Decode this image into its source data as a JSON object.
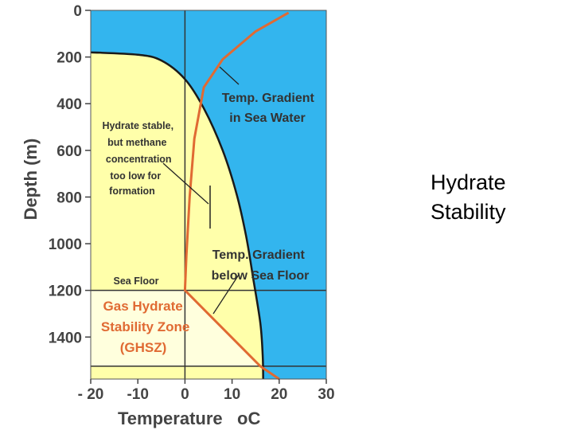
{
  "slide_title": {
    "line1": "Hydrate",
    "line2": "Stability"
  },
  "colors": {
    "sea_water": "#33b5ee",
    "stability_field": "#ffffaa",
    "ghsz": "#ffffdd",
    "temperature_curve": "#e06a33",
    "phase_boundary": "#1a1a1a",
    "axis_text": "#444444"
  },
  "chart_data": {
    "type": "line",
    "title": "",
    "xlabel": "Temperature",
    "xlabel_unit": "oC",
    "ylabel": "Depth (m)",
    "xlim": [
      -20,
      30
    ],
    "ylim": [
      0,
      1580
    ],
    "y_inverted": true,
    "x_ticks": [
      "- 20",
      "-10",
      "0",
      "10",
      "20",
      "30"
    ],
    "x_tick_values": [
      -20,
      -10,
      0,
      10,
      20,
      30
    ],
    "y_ticks": [
      "0",
      "200",
      "400",
      "600",
      "800",
      "1000",
      "1200",
      "1400"
    ],
    "y_tick_values": [
      0,
      200,
      400,
      600,
      800,
      1000,
      1200,
      1400
    ],
    "grid": false,
    "series": [
      {
        "role": "hydrate-phase-boundary",
        "points": [
          [
            -20,
            180
          ],
          [
            -10,
            190
          ],
          [
            -5,
            215
          ],
          [
            0,
            295
          ],
          [
            4,
            420
          ],
          [
            8,
            600
          ],
          [
            11,
            790
          ],
          [
            13,
            970
          ],
          [
            14.5,
            1150
          ],
          [
            16,
            1340
          ],
          [
            16.5,
            1480
          ],
          [
            16.6,
            1580
          ]
        ]
      },
      {
        "role": "temperature-gradient",
        "points": [
          [
            22,
            10
          ],
          [
            15,
            90
          ],
          [
            8,
            210
          ],
          [
            4,
            330
          ],
          [
            2,
            550
          ],
          [
            1,
            800
          ],
          [
            0.3,
            1050
          ],
          [
            0,
            1200
          ],
          [
            16,
            1525
          ],
          [
            20,
            1580
          ]
        ]
      }
    ],
    "sea_floor_depth": 1200,
    "ghsz_base_depth": 1525,
    "annotations": {
      "temp_sea_water": [
        "Temp. Gradient",
        "in Sea Water"
      ],
      "temp_below_floor": [
        "Temp. Gradient",
        "below Sea Floor"
      ],
      "hydrate_stable": [
        "Hydrate stable,",
        "but methane",
        "concentration",
        "too low for",
        "formation"
      ],
      "sea_floor": "Sea Floor",
      "ghsz": [
        "Gas Hydrate",
        "Stability Zone",
        "(GHSZ)"
      ]
    }
  }
}
